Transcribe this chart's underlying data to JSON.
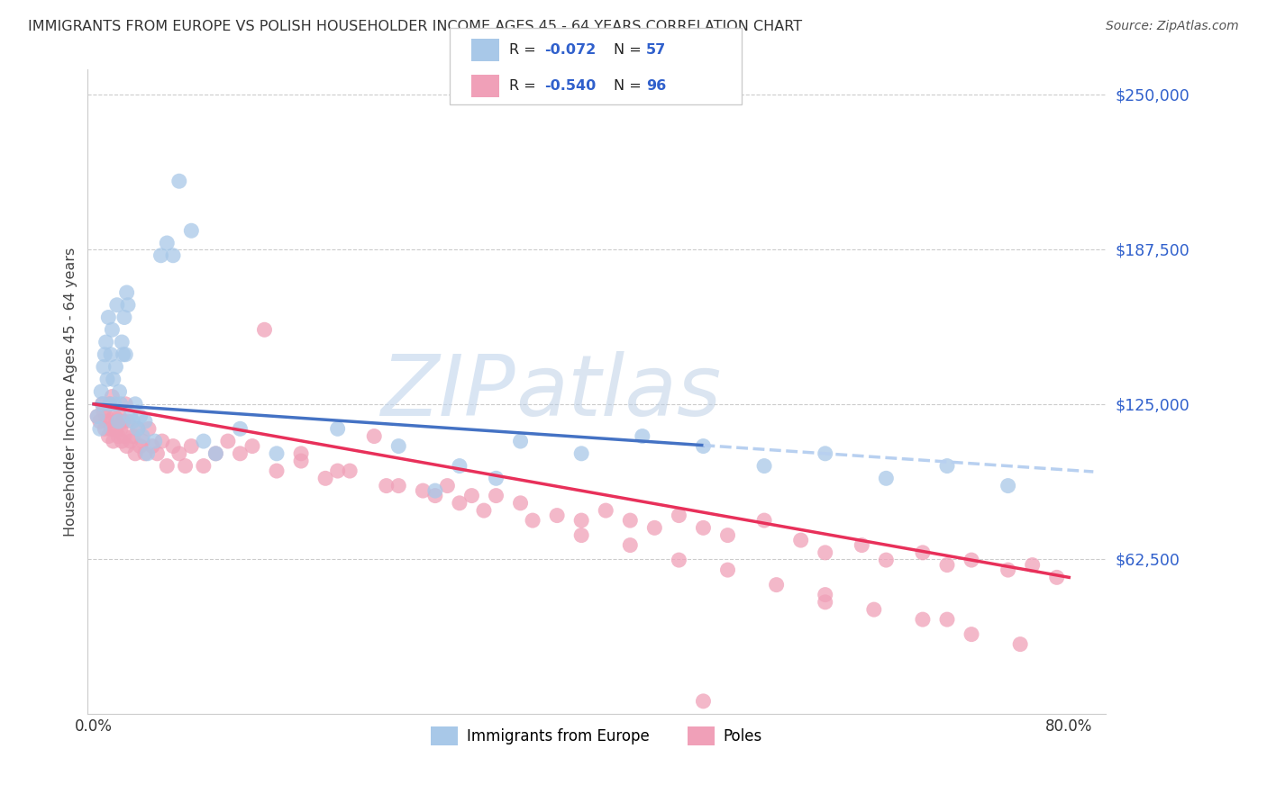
{
  "title": "IMMIGRANTS FROM EUROPE VS POLISH HOUSEHOLDER INCOME AGES 45 - 64 YEARS CORRELATION CHART",
  "source": "Source: ZipAtlas.com",
  "ylabel_label": "Householder Income Ages 45 - 64 years",
  "ytick_labels": [
    "$62,500",
    "$125,000",
    "$187,500",
    "$250,000"
  ],
  "ytick_values": [
    62500,
    125000,
    187500,
    250000
  ],
  "ymin": 0,
  "ymax": 260000,
  "xmin": -0.005,
  "xmax": 0.83,
  "xtick_positions": [
    0.0,
    0.8
  ],
  "xtick_labels": [
    "0.0%",
    "80.0%"
  ],
  "legend_label1": "Immigrants from Europe",
  "legend_label2": "Poles",
  "color_blue": "#A8C8E8",
  "color_pink": "#F0A0B8",
  "trend_blue": "#4472C4",
  "trend_pink": "#E8305A",
  "trend_blue_dashed": "#B8D0F0",
  "background": "#FFFFFF",
  "watermark_color": "#D0DFF0",
  "blue_scatter_x": [
    0.003,
    0.005,
    0.006,
    0.007,
    0.008,
    0.009,
    0.01,
    0.011,
    0.012,
    0.013,
    0.014,
    0.015,
    0.016,
    0.017,
    0.018,
    0.019,
    0.02,
    0.021,
    0.022,
    0.023,
    0.024,
    0.025,
    0.026,
    0.027,
    0.028,
    0.03,
    0.032,
    0.034,
    0.036,
    0.038,
    0.04,
    0.042,
    0.044,
    0.05,
    0.055,
    0.06,
    0.065,
    0.07,
    0.08,
    0.09,
    0.1,
    0.12,
    0.15,
    0.2,
    0.25,
    0.3,
    0.35,
    0.4,
    0.45,
    0.5,
    0.55,
    0.6,
    0.65,
    0.7,
    0.75,
    0.28,
    0.33
  ],
  "blue_scatter_y": [
    120000,
    115000,
    130000,
    125000,
    140000,
    145000,
    150000,
    135000,
    160000,
    125000,
    145000,
    155000,
    135000,
    125000,
    140000,
    165000,
    118000,
    130000,
    125000,
    150000,
    145000,
    160000,
    145000,
    170000,
    165000,
    120000,
    118000,
    125000,
    115000,
    120000,
    112000,
    118000,
    105000,
    110000,
    185000,
    190000,
    185000,
    215000,
    195000,
    110000,
    105000,
    115000,
    105000,
    115000,
    108000,
    100000,
    110000,
    105000,
    112000,
    108000,
    100000,
    105000,
    95000,
    100000,
    92000,
    90000,
    95000
  ],
  "pink_scatter_x": [
    0.003,
    0.005,
    0.007,
    0.008,
    0.009,
    0.01,
    0.011,
    0.012,
    0.013,
    0.014,
    0.015,
    0.016,
    0.017,
    0.018,
    0.019,
    0.02,
    0.021,
    0.022,
    0.023,
    0.024,
    0.025,
    0.026,
    0.027,
    0.028,
    0.03,
    0.032,
    0.034,
    0.036,
    0.038,
    0.04,
    0.042,
    0.045,
    0.048,
    0.052,
    0.056,
    0.06,
    0.065,
    0.07,
    0.075,
    0.08,
    0.09,
    0.1,
    0.11,
    0.12,
    0.13,
    0.14,
    0.15,
    0.17,
    0.19,
    0.21,
    0.23,
    0.25,
    0.27,
    0.29,
    0.31,
    0.33,
    0.35,
    0.38,
    0.4,
    0.42,
    0.44,
    0.46,
    0.48,
    0.5,
    0.52,
    0.55,
    0.58,
    0.6,
    0.63,
    0.65,
    0.68,
    0.7,
    0.72,
    0.75,
    0.77,
    0.79,
    0.17,
    0.2,
    0.24,
    0.28,
    0.32,
    0.36,
    0.4,
    0.44,
    0.48,
    0.52,
    0.56,
    0.6,
    0.64,
    0.68,
    0.72,
    0.76,
    0.5,
    0.3,
    0.6,
    0.7
  ],
  "pink_scatter_y": [
    120000,
    118000,
    125000,
    122000,
    115000,
    120000,
    118000,
    112000,
    125000,
    115000,
    128000,
    110000,
    120000,
    115000,
    118000,
    112000,
    120000,
    115000,
    110000,
    118000,
    112000,
    125000,
    108000,
    118000,
    110000,
    112000,
    105000,
    115000,
    108000,
    110000,
    105000,
    115000,
    108000,
    105000,
    110000,
    100000,
    108000,
    105000,
    100000,
    108000,
    100000,
    105000,
    110000,
    105000,
    108000,
    155000,
    98000,
    105000,
    95000,
    98000,
    112000,
    92000,
    90000,
    92000,
    88000,
    88000,
    85000,
    80000,
    78000,
    82000,
    78000,
    75000,
    80000,
    75000,
    72000,
    78000,
    70000,
    65000,
    68000,
    62000,
    65000,
    60000,
    62000,
    58000,
    60000,
    55000,
    102000,
    98000,
    92000,
    88000,
    82000,
    78000,
    72000,
    68000,
    62000,
    58000,
    52000,
    48000,
    42000,
    38000,
    32000,
    28000,
    5000,
    85000,
    45000,
    38000
  ]
}
